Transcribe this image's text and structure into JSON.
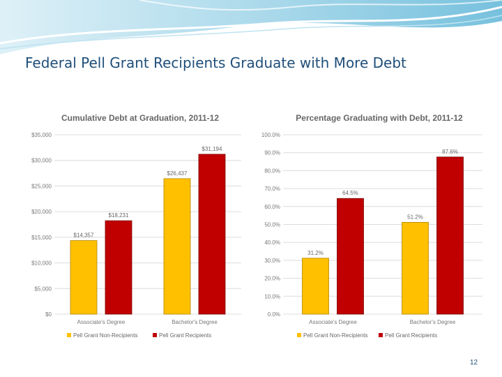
{
  "slide": {
    "title": "Federal Pell Grant Recipients Graduate with More Debt",
    "page_number": "12"
  },
  "colors": {
    "non_recipients": "#ffc000",
    "recipients": "#c00000",
    "title_color": "#1f4e79"
  },
  "chart_data": [
    {
      "type": "bar",
      "title": "Cumulative Debt at Graduation, 2011-12",
      "categories": [
        "Associate's Degree",
        "Bachelor's Degree"
      ],
      "series": [
        {
          "name": "Pell Grant Non-Recipients",
          "values": [
            14357,
            26437
          ],
          "labels": [
            "$14,357",
            "$26,437"
          ]
        },
        {
          "name": "Pell Grant Recipients",
          "values": [
            18231,
            31194
          ],
          "labels": [
            "$18,231",
            "$31,194"
          ]
        }
      ],
      "ylim": [
        0,
        35000
      ],
      "yticks": [
        0,
        5000,
        10000,
        15000,
        20000,
        25000,
        30000,
        35000
      ],
      "ytick_labels": [
        "$0",
        "$5,000",
        "$10,000",
        "$15,000",
        "$20,000",
        "$25,000",
        "$30,000",
        "$35,000"
      ],
      "grid": true,
      "legend": "bottom"
    },
    {
      "type": "bar",
      "title": "Percentage Graduating with Debt, 2011-12",
      "categories": [
        "Associate's Degree",
        "Bachelor's Degree"
      ],
      "series": [
        {
          "name": "Pell Grant Non-Recipients",
          "values": [
            31.2,
            51.2
          ],
          "labels": [
            "31.2%",
            "51.2%"
          ]
        },
        {
          "name": "Pell Grant Recipients",
          "values": [
            64.5,
            87.6
          ],
          "labels": [
            "64.5%",
            "87.6%"
          ]
        }
      ],
      "ylim": [
        0,
        100
      ],
      "yticks": [
        0,
        10,
        20,
        30,
        40,
        50,
        60,
        70,
        80,
        90,
        100
      ],
      "ytick_labels": [
        "0.0%",
        "10.0%",
        "20.0%",
        "30.0%",
        "40.0%",
        "50.0%",
        "60.0%",
        "70.0%",
        "80.0%",
        "90.0%",
        "100.0%"
      ],
      "grid": true,
      "legend": "bottom"
    }
  ]
}
